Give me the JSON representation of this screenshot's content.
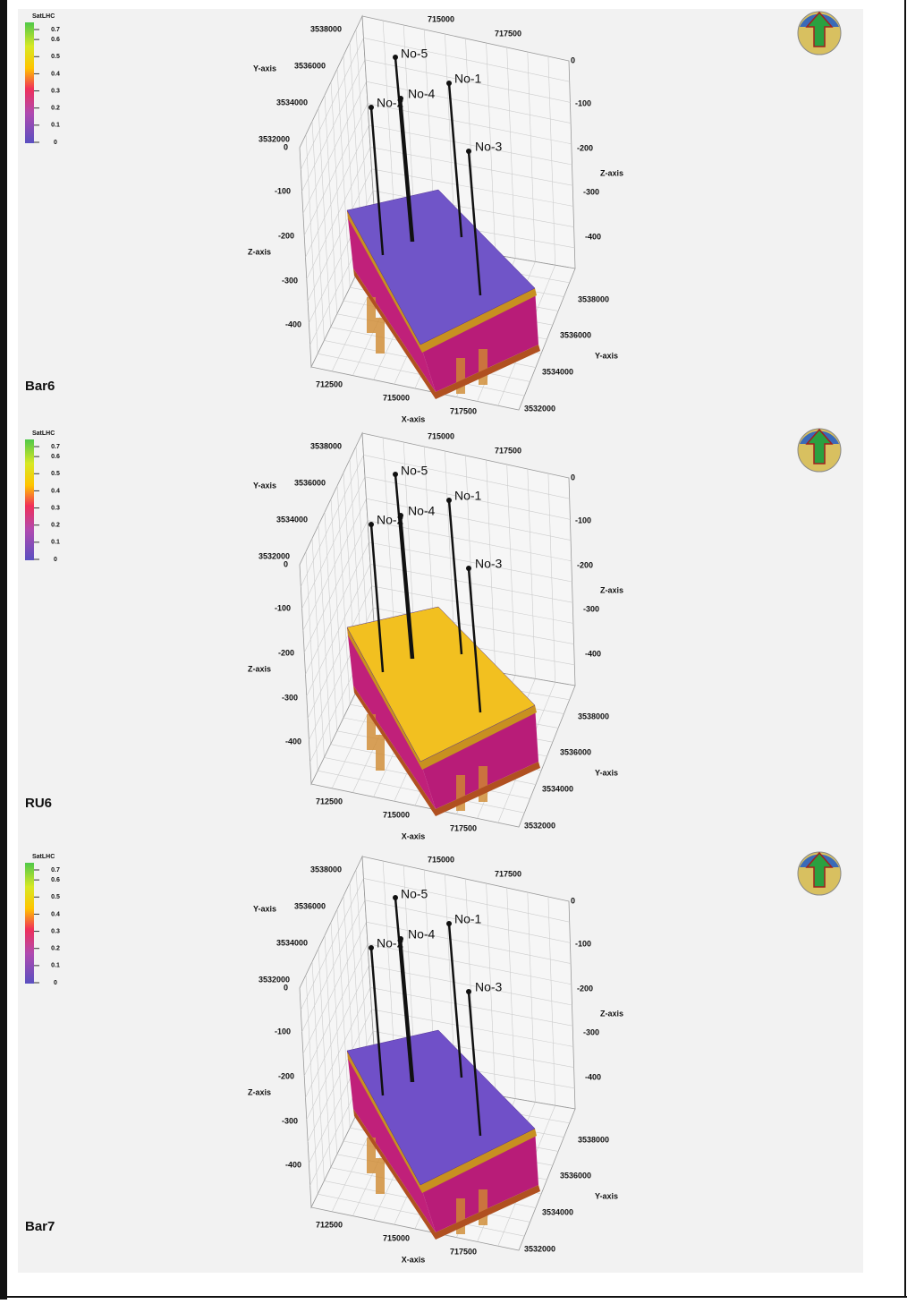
{
  "panels": [
    {
      "label": "Bar6",
      "legend": {
        "title": "SatLHC",
        "ticks": [
          "0.7",
          "0.6",
          "0.5",
          "0.4",
          "0.3",
          "0.2",
          "0.1",
          "0"
        ]
      },
      "axes": {
        "x_label": "X-axis",
        "y_label": "Y-axis",
        "z_label": "Z-axis",
        "top_x_ticks": [
          "715000",
          "717500"
        ],
        "x_ticks": [
          "712500",
          "715000",
          "717500"
        ],
        "y_ticks_left": [
          "3538000",
          "3536000",
          "3534000",
          "3532000"
        ],
        "y_ticks_right": [
          "3538000",
          "3536000",
          "3534000",
          "3532000"
        ],
        "z_ticks_left": [
          "0",
          "-100",
          "-200",
          "-300",
          "-400"
        ],
        "z_ticks_right": [
          "0",
          "-100",
          "-200",
          "-300",
          "-400"
        ]
      },
      "wells": [
        "No-5",
        "No-4",
        "No-1",
        "No-2",
        "No-3"
      ]
    },
    {
      "label": "RU6",
      "legend": {
        "title": "SatLHC",
        "ticks": [
          "0.7",
          "0.6",
          "0.5",
          "0.4",
          "0.3",
          "0.2",
          "0.1",
          "0"
        ]
      },
      "axes": {
        "x_label": "X-axis",
        "y_label": "Y-axis",
        "z_label": "Z-axis",
        "top_x_ticks": [
          "715000",
          "717500"
        ],
        "x_ticks": [
          "712500",
          "715000",
          "717500"
        ],
        "y_ticks_left": [
          "3538000",
          "3536000",
          "3534000",
          "3532000"
        ],
        "y_ticks_right": [
          "3538000",
          "3536000",
          "3534000",
          "3532000"
        ],
        "z_ticks_left": [
          "0",
          "-100",
          "-200",
          "-300",
          "-400"
        ],
        "z_ticks_right": [
          "0",
          "-100",
          "-200",
          "-300",
          "-400"
        ]
      },
      "wells": [
        "No-5",
        "No-4",
        "No-1",
        "No-2",
        "No-3"
      ]
    },
    {
      "label": "Bar7",
      "legend": {
        "title": "SatLHC",
        "ticks": [
          "0.7",
          "0.6",
          "0.5",
          "0.4",
          "0.3",
          "0.2",
          "0.1",
          "0"
        ]
      },
      "axes": {
        "x_label": "X-axis",
        "y_label": "Y-axis",
        "z_label": "Z-axis",
        "top_x_ticks": [
          "715000",
          "717500"
        ],
        "x_ticks": [
          "712500",
          "715000",
          "717500"
        ],
        "y_ticks_left": [
          "3538000",
          "3536000",
          "3534000",
          "3532000"
        ],
        "y_ticks_right": [
          "3538000",
          "3536000",
          "3534000",
          "3532000"
        ],
        "z_ticks_left": [
          "0",
          "-100",
          "-200",
          "-300",
          "-400"
        ],
        "z_ticks_right": [
          "0",
          "-100",
          "-200",
          "-300",
          "-400"
        ]
      },
      "wells": [
        "No-5",
        "No-4",
        "No-1",
        "No-2",
        "No-3"
      ]
    }
  ]
}
